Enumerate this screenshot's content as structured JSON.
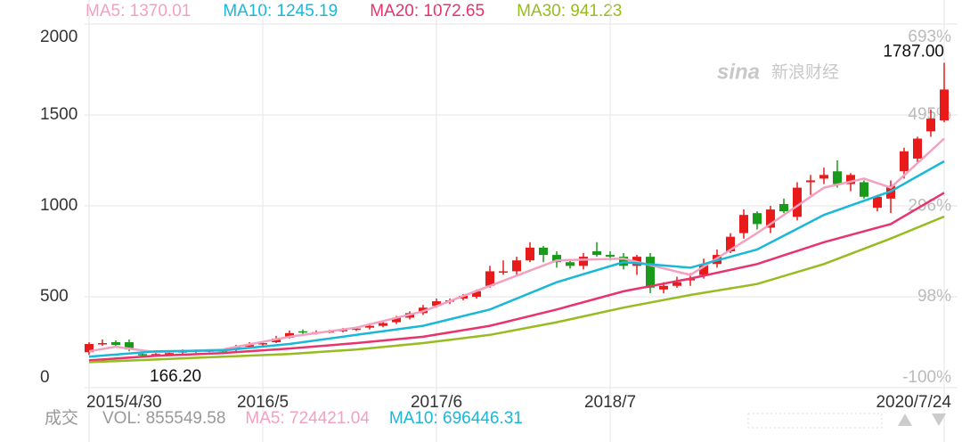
{
  "chart_data": {
    "type": "candlestick",
    "legend": [
      {
        "label": "MA5: 1370.01",
        "color": "#f4a0c0"
      },
      {
        "label": "MA10: 1245.19",
        "color": "#1ab8d8"
      },
      {
        "label": "MA20: 1072.65",
        "color": "#e8336c"
      },
      {
        "label": "MA30: 941.23",
        "color": "#97bc20"
      }
    ],
    "watermark": {
      "brand": "sina",
      "name": "新浪财经"
    },
    "ylim": [
      0,
      2000
    ],
    "yticks": [
      0,
      500,
      1000,
      1500,
      2000
    ],
    "y2lim": [
      -100,
      693
    ],
    "y2ticks": [
      {
        "value": -100,
        "label": "-100%"
      },
      {
        "value": 98,
        "label": "98%"
      },
      {
        "value": 296,
        "label": "296%"
      },
      {
        "value": 495,
        "label": "495%"
      },
      {
        "value": 693,
        "label": "693%"
      }
    ],
    "xlim": [
      0,
      64
    ],
    "xticks": [
      {
        "value": 0,
        "label": "2015/4/30"
      },
      {
        "value": 13,
        "label": "2016/5"
      },
      {
        "value": 26,
        "label": "2017/6"
      },
      {
        "value": 39,
        "label": "2018/7"
      },
      {
        "value": 64,
        "label": "2020/7/24"
      }
    ],
    "up_color": "#e81a1a",
    "down_color": "#1a9a1a",
    "open": [
      195,
      240,
      250,
      250,
      185,
      180,
      185,
      195,
      205,
      200,
      205,
      210,
      225,
      240,
      250,
      275,
      310,
      300,
      305,
      310,
      320,
      330,
      340,
      360,
      385,
      410,
      450,
      480,
      490,
      500,
      560,
      640,
      640,
      700,
      770,
      730,
      690,
      670,
      750,
      730,
      720,
      670,
      720,
      540,
      560,
      590,
      620,
      680,
      750,
      850,
      960,
      880,
      1010,
      940,
      1130,
      1150,
      1190,
      1120,
      1130,
      990,
      1040,
      1190,
      1260,
      1410,
      1470
    ],
    "close": [
      240,
      245,
      235,
      210,
      180,
      185,
      190,
      200,
      200,
      205,
      200,
      225,
      235,
      245,
      270,
      300,
      305,
      305,
      310,
      320,
      325,
      340,
      355,
      385,
      410,
      440,
      475,
      480,
      505,
      530,
      640,
      640,
      700,
      770,
      730,
      690,
      670,
      720,
      730,
      720,
      670,
      720,
      550,
      560,
      580,
      600,
      680,
      730,
      830,
      950,
      900,
      980,
      970,
      1100,
      1140,
      1170,
      1120,
      1170,
      1050,
      1050,
      1110,
      1300,
      1370,
      1480,
      1640
    ],
    "high": [
      250,
      265,
      260,
      265,
      195,
      195,
      200,
      210,
      210,
      212,
      210,
      235,
      250,
      250,
      285,
      315,
      320,
      315,
      318,
      328,
      335,
      355,
      365,
      395,
      420,
      455,
      490,
      490,
      515,
      540,
      670,
      700,
      720,
      800,
      780,
      750,
      700,
      740,
      800,
      750,
      740,
      730,
      740,
      580,
      610,
      630,
      710,
      760,
      850,
      980,
      970,
      1000,
      1040,
      1130,
      1170,
      1210,
      1250,
      1180,
      1140,
      1060,
      1140,
      1320,
      1380,
      1530,
      1787
    ],
    "low": [
      180,
      230,
      225,
      200,
      166.2,
      170,
      175,
      185,
      190,
      195,
      192,
      200,
      220,
      230,
      245,
      270,
      295,
      292,
      300,
      305,
      312,
      320,
      332,
      350,
      375,
      400,
      440,
      460,
      480,
      490,
      550,
      620,
      620,
      690,
      690,
      660,
      655,
      650,
      720,
      700,
      650,
      620,
      520,
      520,
      550,
      560,
      600,
      660,
      740,
      820,
      870,
      850,
      960,
      920,
      1060,
      1120,
      1100,
      1080,
      1040,
      970,
      960,
      1150,
      1240,
      1380,
      1460
    ],
    "series": [
      {
        "name": "MA5",
        "color": "#f4a0c0",
        "x": [
          0,
          2,
          5,
          10,
          15,
          20,
          25,
          30,
          35,
          40,
          45,
          50,
          55,
          58,
          60,
          64
        ],
        "values": [
          200,
          225,
          195,
          210,
          280,
          330,
          420,
          560,
          700,
          710,
          620,
          850,
          1100,
          1150,
          1100,
          1370
        ]
      },
      {
        "name": "MA10",
        "color": "#1ab8d8",
        "x": [
          0,
          5,
          10,
          15,
          20,
          25,
          30,
          35,
          40,
          45,
          50,
          55,
          60,
          64
        ],
        "values": [
          170,
          200,
          205,
          240,
          290,
          340,
          430,
          580,
          690,
          660,
          760,
          950,
          1080,
          1245
        ]
      },
      {
        "name": "MA20",
        "color": "#e8336c",
        "x": [
          0,
          5,
          10,
          15,
          20,
          25,
          30,
          35,
          40,
          45,
          50,
          55,
          60,
          64
        ],
        "values": [
          150,
          175,
          190,
          215,
          245,
          280,
          340,
          430,
          530,
          600,
          680,
          800,
          900,
          1072
        ]
      },
      {
        "name": "MA30",
        "color": "#97bc20",
        "x": [
          0,
          5,
          10,
          15,
          20,
          25,
          30,
          35,
          40,
          45,
          50,
          55,
          60,
          64
        ],
        "values": [
          140,
          155,
          170,
          185,
          210,
          245,
          290,
          360,
          440,
          510,
          570,
          680,
          820,
          941
        ]
      }
    ],
    "annotations": [
      {
        "label": "1787.00",
        "value": 1787,
        "index": 64
      },
      {
        "label": "166.20",
        "value": 166.2,
        "index": 4
      }
    ],
    "volume_bar": {
      "title": "成交",
      "items": [
        {
          "label": "VOL: 855549.58",
          "color": "#999999"
        },
        {
          "label": "MA5: 724421.04",
          "color": "#f4a0c0"
        },
        {
          "label": "MA10: 696446.31",
          "color": "#1ab8d8"
        }
      ]
    }
  }
}
